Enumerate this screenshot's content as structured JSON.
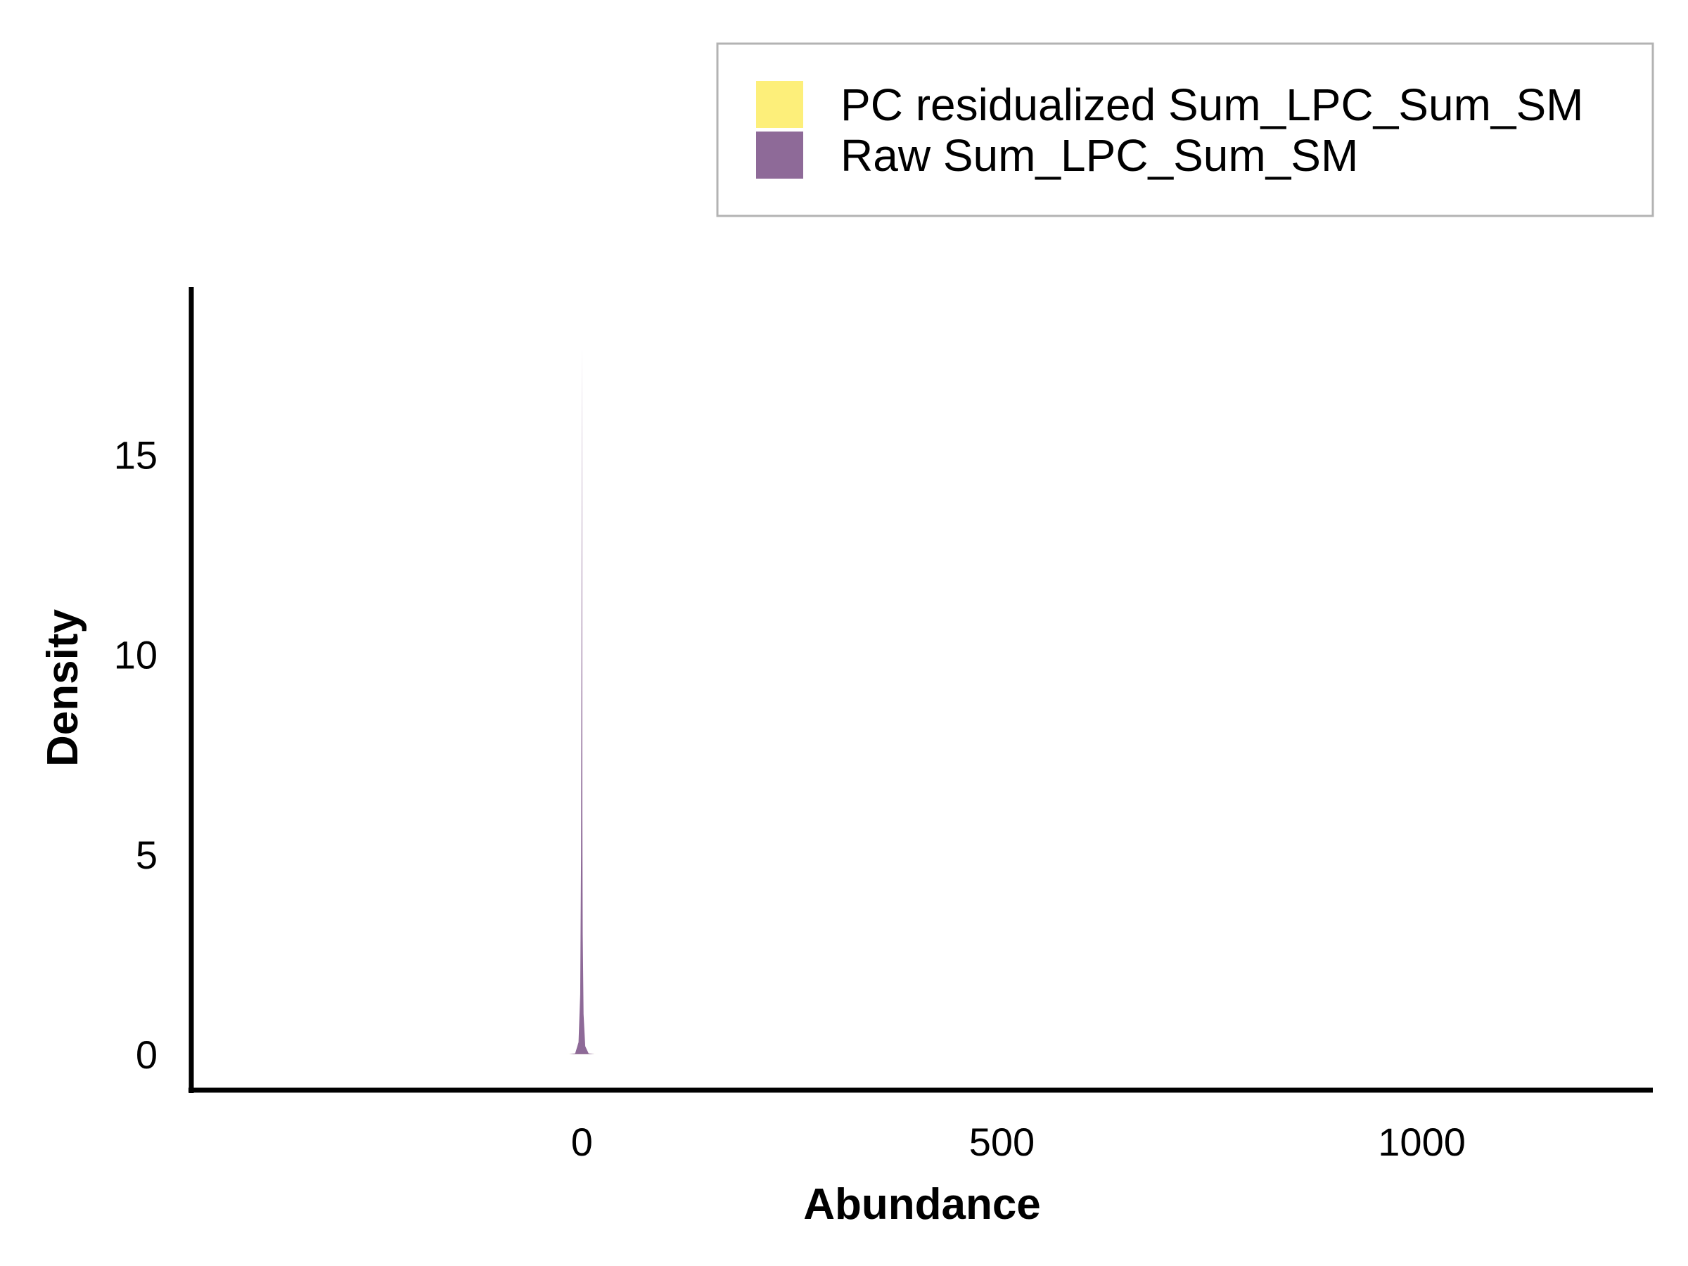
{
  "chart_data": {
    "type": "area",
    "xlabel": "Abundance",
    "ylabel": "Density",
    "xlim": [
      -465,
      1275
    ],
    "ylim": [
      -0.9,
      19.2
    ],
    "x_ticks": [
      0,
      500,
      1000
    ],
    "y_ticks": [
      0,
      5,
      10,
      15
    ],
    "grid": false,
    "legend_position": "top-right",
    "series": [
      {
        "name": "PC residualized Sum_LPC_Sum_SM",
        "color": "#fdef7a",
        "x": [
          -20,
          -10,
          -4,
          -2,
          -1,
          0,
          1,
          2,
          4,
          10,
          20
        ],
        "y": [
          0,
          0.002,
          0.01,
          0.04,
          0.08,
          0.1,
          0.08,
          0.04,
          0.01,
          0.002,
          0
        ]
      },
      {
        "name": "Raw Sum_LPC_Sum_SM",
        "color": "#8e6a98",
        "x": [
          -15,
          -8,
          -4,
          -2,
          -1,
          -0.5,
          0,
          0.3,
          0.6,
          1,
          2,
          4,
          8,
          15
        ],
        "y": [
          0,
          0.02,
          0.3,
          1.5,
          5,
          10,
          17.7,
          12,
          6,
          3,
          1,
          0.2,
          0.02,
          0
        ]
      }
    ]
  }
}
